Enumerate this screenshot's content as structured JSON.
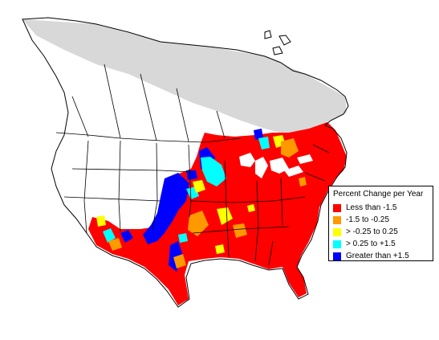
{
  "colors": {
    "background": "#ffffff",
    "out_of_range": "#d8d8d8",
    "boundary": "#000000"
  },
  "legend": {
    "title": "Percent Change per Year",
    "entries": [
      {
        "label": "Less than -1.5",
        "color": "#ff0000"
      },
      {
        "label": "-1.5 to -0.25",
        "color": "#ff9900"
      },
      {
        "label": "> -0.25 to 0.25",
        "color": "#ffff00"
      },
      {
        "label": "> 0.25 to +1.5",
        "color": "#00ffff"
      },
      {
        "label": "Greater than +1.5",
        "color": "#0000ff"
      }
    ]
  }
}
